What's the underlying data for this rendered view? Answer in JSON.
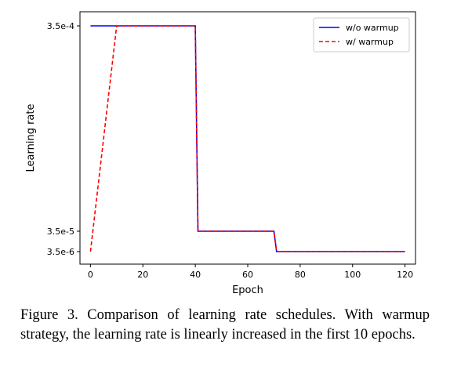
{
  "chart_data": {
    "type": "line",
    "title": "",
    "xlabel": "Epoch",
    "ylabel": "Learning rate",
    "xlim": [
      -4,
      124
    ],
    "ylim": [
      0.0,
      0.00035
    ],
    "x_ticks": [
      0,
      20,
      40,
      60,
      80,
      100,
      120
    ],
    "y_ticks": [
      {
        "value": 0.00035,
        "label": "3.5e-4"
      },
      {
        "value": 3.5e-05,
        "label": "3.5e-5"
      },
      {
        "value": 3.5e-06,
        "label": "3.5e-6"
      }
    ],
    "grid": false,
    "legend_position": "top-right",
    "series": [
      {
        "name": "w/o warmup",
        "color": "#0000ff",
        "style": "solid",
        "x": [
          0,
          40,
          41,
          70,
          71,
          120
        ],
        "y": [
          0.00035,
          0.00035,
          3.5e-05,
          3.5e-05,
          3.5e-06,
          3.5e-06
        ]
      },
      {
        "name": "w/ warmup",
        "color": "#ff0000",
        "style": "dashed",
        "x": [
          0,
          10,
          40,
          41,
          70,
          71,
          120
        ],
        "y": [
          3.5e-06,
          0.00035,
          0.00035,
          3.5e-05,
          3.5e-05,
          3.5e-06,
          3.5e-06
        ]
      }
    ]
  },
  "caption": "Figure 3. Comparison of learning rate schedules.  With warmup strategy, the learning rate is linearly increased in the first 10 epochs."
}
